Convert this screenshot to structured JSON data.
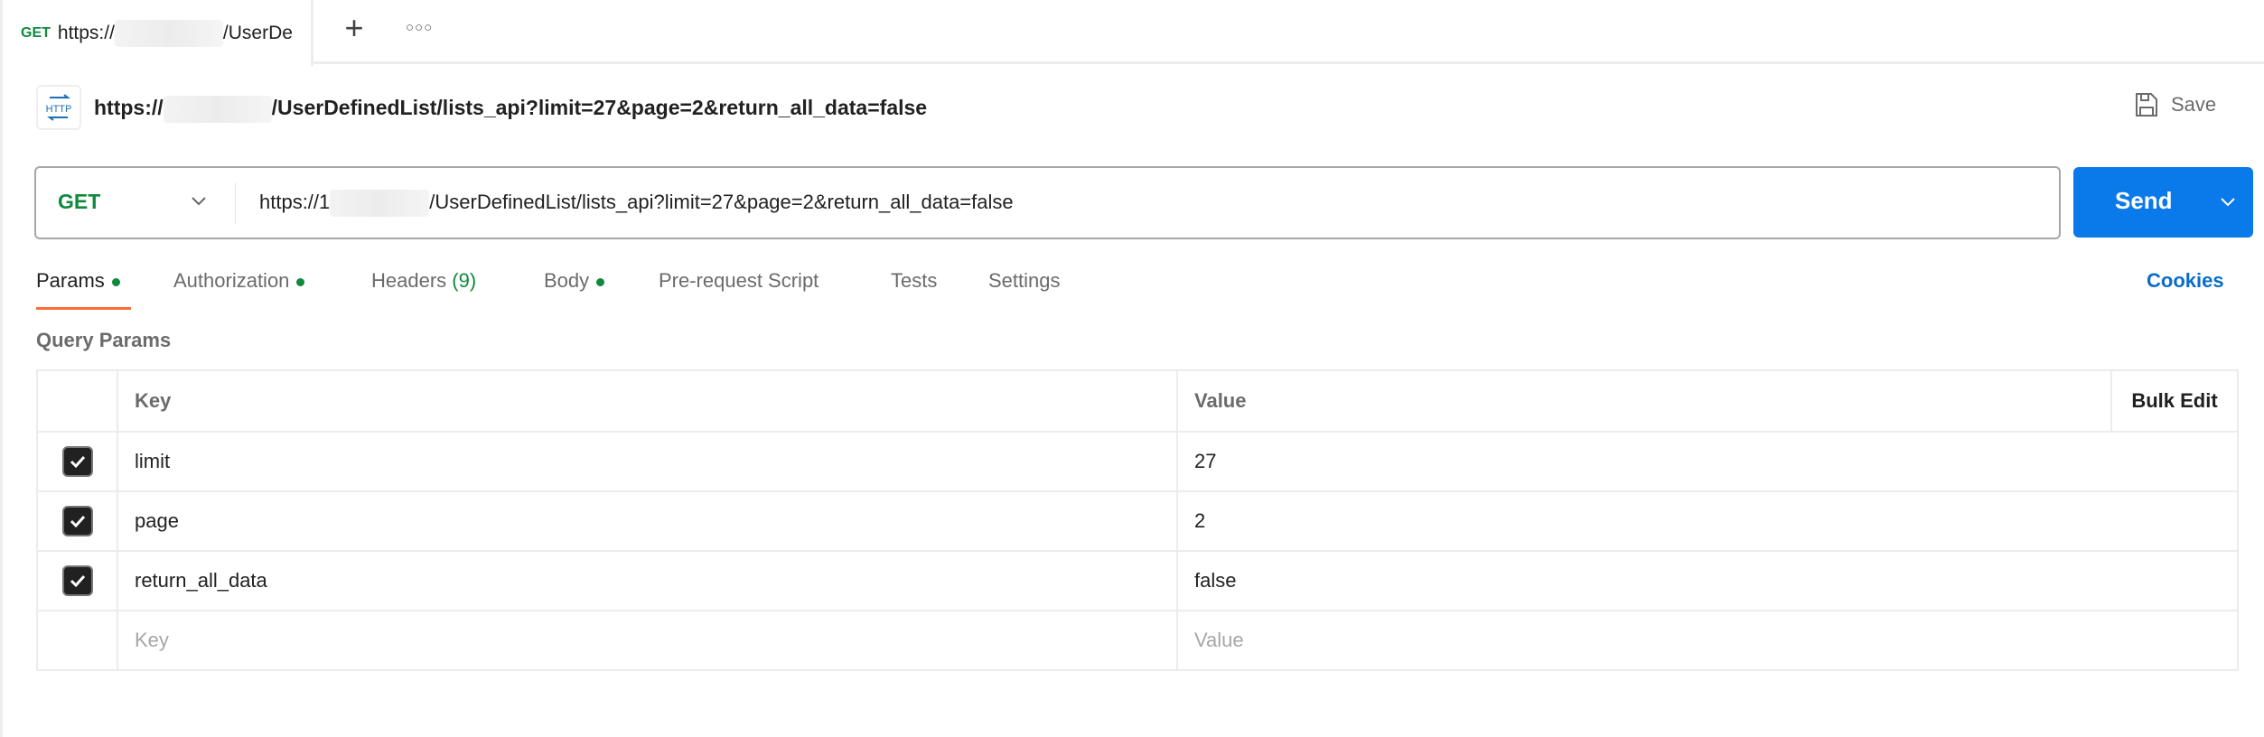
{
  "tab": {
    "method": "GET",
    "url_prefix": "https://",
    "url_suffix": "/UserDe"
  },
  "tabbar": {
    "new_tab_icon": "plus-icon",
    "more_icon": "more-dots-icon"
  },
  "request": {
    "title_prefix": "https://",
    "title_suffix": "/UserDefinedList/lists_api?limit=27&page=2&return_all_data=false",
    "save_label": "Save",
    "method": "GET",
    "url_prefix": "https://1",
    "url_suffix": "/UserDefinedList/lists_api?limit=27&page=2&return_all_data=false",
    "send_label": "Send"
  },
  "colors": {
    "method_get": "#0f8a3d",
    "send": "#0a7aea",
    "active_tab": "#ff6c37",
    "link": "#0a6cc8"
  },
  "tabs": [
    {
      "label": "Params",
      "dot": true,
      "active": true
    },
    {
      "label": "Authorization",
      "dot": true
    },
    {
      "label": "Headers",
      "count": "(9)"
    },
    {
      "label": "Body",
      "dot": true
    },
    {
      "label": "Pre-request Script"
    },
    {
      "label": "Tests"
    },
    {
      "label": "Settings"
    }
  ],
  "cookies_label": "Cookies",
  "query_params": {
    "title": "Query Params",
    "headers": {
      "key": "Key",
      "value": "Value",
      "bulk_edit": "Bulk Edit"
    },
    "rows": [
      {
        "checked": true,
        "key": "limit",
        "value": "27"
      },
      {
        "checked": true,
        "key": "page",
        "value": "2"
      },
      {
        "checked": true,
        "key": "return_all_data",
        "value": "false"
      }
    ],
    "placeholder": {
      "key": "Key",
      "value": "Value"
    }
  }
}
